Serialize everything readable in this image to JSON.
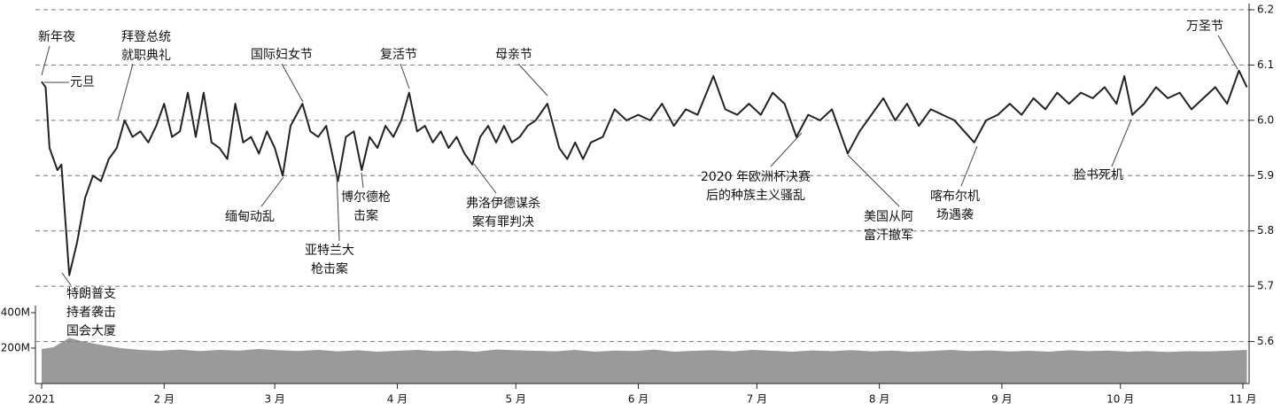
{
  "chart_data": [
    {
      "type": "line",
      "color": "#222222",
      "x": [
        0,
        1,
        2,
        4,
        5,
        7,
        9,
        11,
        13,
        15,
        17,
        19,
        21,
        23,
        25,
        27,
        29,
        31,
        33,
        35,
        37,
        39,
        41,
        43,
        45,
        47,
        49,
        51,
        53,
        55,
        57,
        59,
        61,
        63,
        66,
        68,
        70,
        72,
        75,
        77,
        79,
        81,
        83,
        85,
        87,
        89,
        91,
        93,
        95,
        97,
        99,
        101,
        103,
        105,
        107,
        109,
        111,
        113,
        115,
        117,
        119,
        121,
        123,
        125,
        128,
        131,
        133,
        135,
        137,
        139,
        142,
        145,
        148,
        151,
        154,
        157,
        160,
        163,
        166,
        170,
        173,
        176,
        179,
        182,
        185,
        188,
        191,
        194,
        197,
        200,
        204,
        207,
        210,
        213,
        216,
        219,
        222,
        225,
        228,
        231,
        236,
        239,
        242,
        245,
        248,
        251,
        254,
        257,
        260,
        263,
        266,
        269,
        272,
        274,
        276,
        279,
        282,
        285,
        288,
        291,
        294,
        297,
        300,
        303,
        305
      ],
      "values": [
        6.07,
        6.06,
        5.95,
        5.91,
        5.92,
        5.72,
        5.78,
        5.86,
        5.9,
        5.89,
        5.93,
        5.95,
        6.0,
        5.97,
        5.98,
        5.96,
        5.99,
        6.03,
        5.97,
        5.98,
        6.05,
        5.97,
        6.05,
        5.96,
        5.95,
        5.93,
        6.03,
        5.96,
        5.97,
        5.94,
        5.98,
        5.95,
        5.9,
        5.99,
        6.03,
        5.98,
        5.97,
        5.99,
        5.89,
        5.97,
        5.98,
        5.91,
        5.97,
        5.95,
        5.99,
        5.97,
        6.0,
        6.05,
        5.98,
        5.99,
        5.96,
        5.98,
        5.95,
        5.97,
        5.94,
        5.92,
        5.97,
        5.99,
        5.96,
        5.99,
        5.96,
        5.97,
        5.99,
        6.0,
        6.03,
        5.95,
        5.93,
        5.96,
        5.93,
        5.96,
        5.97,
        6.02,
        6.0,
        6.01,
        6.0,
        6.03,
        5.99,
        6.02,
        6.01,
        6.08,
        6.02,
        6.01,
        6.03,
        6.01,
        6.05,
        6.03,
        5.97,
        6.01,
        6.0,
        6.02,
        5.94,
        5.98,
        6.01,
        6.04,
        6.0,
        6.03,
        5.99,
        6.02,
        6.01,
        6.0,
        5.96,
        6.0,
        6.01,
        6.03,
        6.01,
        6.04,
        6.02,
        6.05,
        6.03,
        6.05,
        6.04,
        6.06,
        6.03,
        6.08,
        6.01,
        6.03,
        6.06,
        6.04,
        6.05,
        6.02,
        6.04,
        6.06,
        6.03,
        6.09,
        6.06
      ],
      "xlim": [
        0,
        304
      ],
      "xticks": [
        {
          "value": 0,
          "label": "2021"
        },
        {
          "value": 31,
          "label": "2 月"
        },
        {
          "value": 59,
          "label": "3 月"
        },
        {
          "value": 90,
          "label": "4 月"
        },
        {
          "value": 120,
          "label": "5 月"
        },
        {
          "value": 151,
          "label": "6 月"
        },
        {
          "value": 181,
          "label": "7 月"
        },
        {
          "value": 212,
          "label": "8 月"
        },
        {
          "value": 243,
          "label": "9 月"
        },
        {
          "value": 273,
          "label": "10 月"
        },
        {
          "value": 304,
          "label": "11 月"
        }
      ],
      "ylim": [
        5.5,
        6.2
      ],
      "yticks": [
        5.6,
        5.7,
        5.8,
        5.9,
        {
          "value": 6.0,
          "label": "6.0"
        },
        6.1,
        6.2
      ],
      "grid": true,
      "annotations": [
        [
          "新年夜"
        ],
        [
          "元旦"
        ],
        [
          "拜登总统",
          "就职典礼"
        ],
        [
          "国际妇女节"
        ],
        [
          "复活节"
        ],
        [
          "母亲节"
        ],
        [
          "万圣节"
        ],
        [
          "缅甸动乱"
        ],
        [
          "亚特兰大",
          "枪击案"
        ],
        [
          "博尔德枪",
          "击案"
        ],
        [
          "弗洛伊德谋杀",
          "案有罪判决"
        ],
        [
          "2020 年欧洲杯决赛",
          "后的种族主义骚乱"
        ],
        [
          "美国从阿",
          "富汗撤军"
        ],
        [
          "喀布尔机",
          "场遇袭"
        ],
        [
          "脸书死机"
        ],
        [
          "特朗普支",
          "持者袭击",
          "国会大厦"
        ]
      ]
    },
    {
      "type": "area",
      "color": "#9a9a9a",
      "x": [
        0,
        3,
        7,
        10,
        15,
        20,
        25,
        30,
        35,
        40,
        45,
        50,
        55,
        60,
        65,
        70,
        75,
        80,
        85,
        90,
        95,
        100,
        105,
        110,
        115,
        120,
        125,
        130,
        135,
        140,
        145,
        150,
        155,
        160,
        165,
        170,
        175,
        180,
        185,
        190,
        195,
        200,
        205,
        210,
        215,
        220,
        225,
        230,
        235,
        240,
        245,
        250,
        255,
        260,
        265,
        270,
        275,
        280,
        285,
        290,
        295,
        300,
        305
      ],
      "values": [
        195,
        205,
        258,
        240,
        218,
        200,
        190,
        185,
        192,
        183,
        190,
        186,
        195,
        188,
        184,
        190,
        182,
        188,
        180,
        185,
        190,
        183,
        187,
        180,
        192,
        188,
        185,
        182,
        190,
        180,
        186,
        184,
        192,
        180,
        185,
        188,
        182,
        190,
        185,
        180,
        187,
        183,
        189,
        182,
        186,
        180,
        184,
        190,
        183,
        187,
        181,
        185,
        180,
        188,
        183,
        186,
        180,
        184,
        178,
        183,
        181,
        185,
        190
      ],
      "xlim": [
        0,
        304
      ],
      "ylim": [
        0,
        400
      ],
      "yticks": [
        {
          "value": 200,
          "label": "200M"
        },
        {
          "value": 400,
          "label": "400M"
        }
      ]
    }
  ]
}
